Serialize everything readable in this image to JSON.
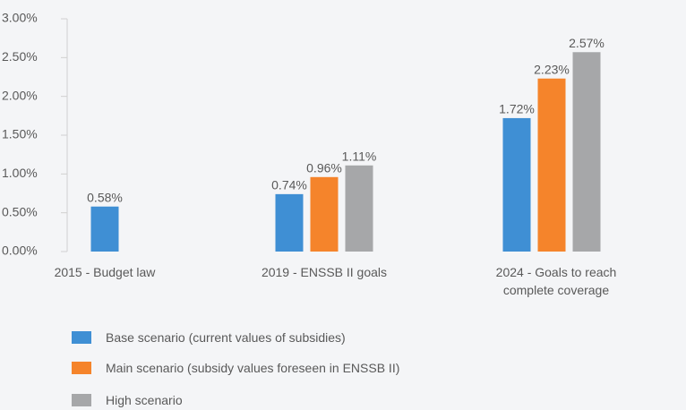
{
  "chart_data": {
    "type": "bar",
    "categories": [
      "2015 - Budget law",
      "2019 - ENSSB II goals",
      "2024 - Goals to reach complete coverage"
    ],
    "series": [
      {
        "name": "Base scenario (current values of subsidies)",
        "color": "#3f8fd4",
        "values": [
          0.58,
          0.74,
          1.72
        ],
        "value_labels": [
          "0.58%",
          "0.74%",
          "1.72%"
        ]
      },
      {
        "name": "Main scenario (subsidy values foreseen in ENSSB II)",
        "color": "#f5842b",
        "values": [
          null,
          0.96,
          2.23
        ],
        "value_labels": [
          null,
          "0.96%",
          "2.23%"
        ]
      },
      {
        "name": "High scenario",
        "color": "#a6a7a9",
        "values": [
          null,
          1.11,
          2.57
        ],
        "value_labels": [
          null,
          "1.11%",
          "2.57%"
        ]
      }
    ],
    "ylim": [
      0,
      3
    ],
    "yticks": [
      {
        "value": 0,
        "label": "0.00%"
      },
      {
        "value": 0.5,
        "label": "0.50%"
      },
      {
        "value": 1,
        "label": "1.00%"
      },
      {
        "value": 1.5,
        "label": "1.50%"
      },
      {
        "value": 2,
        "label": "2.00%"
      },
      {
        "value": 2.5,
        "label": "2.50%"
      },
      {
        "value": 3,
        "label": "3.00%"
      }
    ],
    "grid": false
  }
}
